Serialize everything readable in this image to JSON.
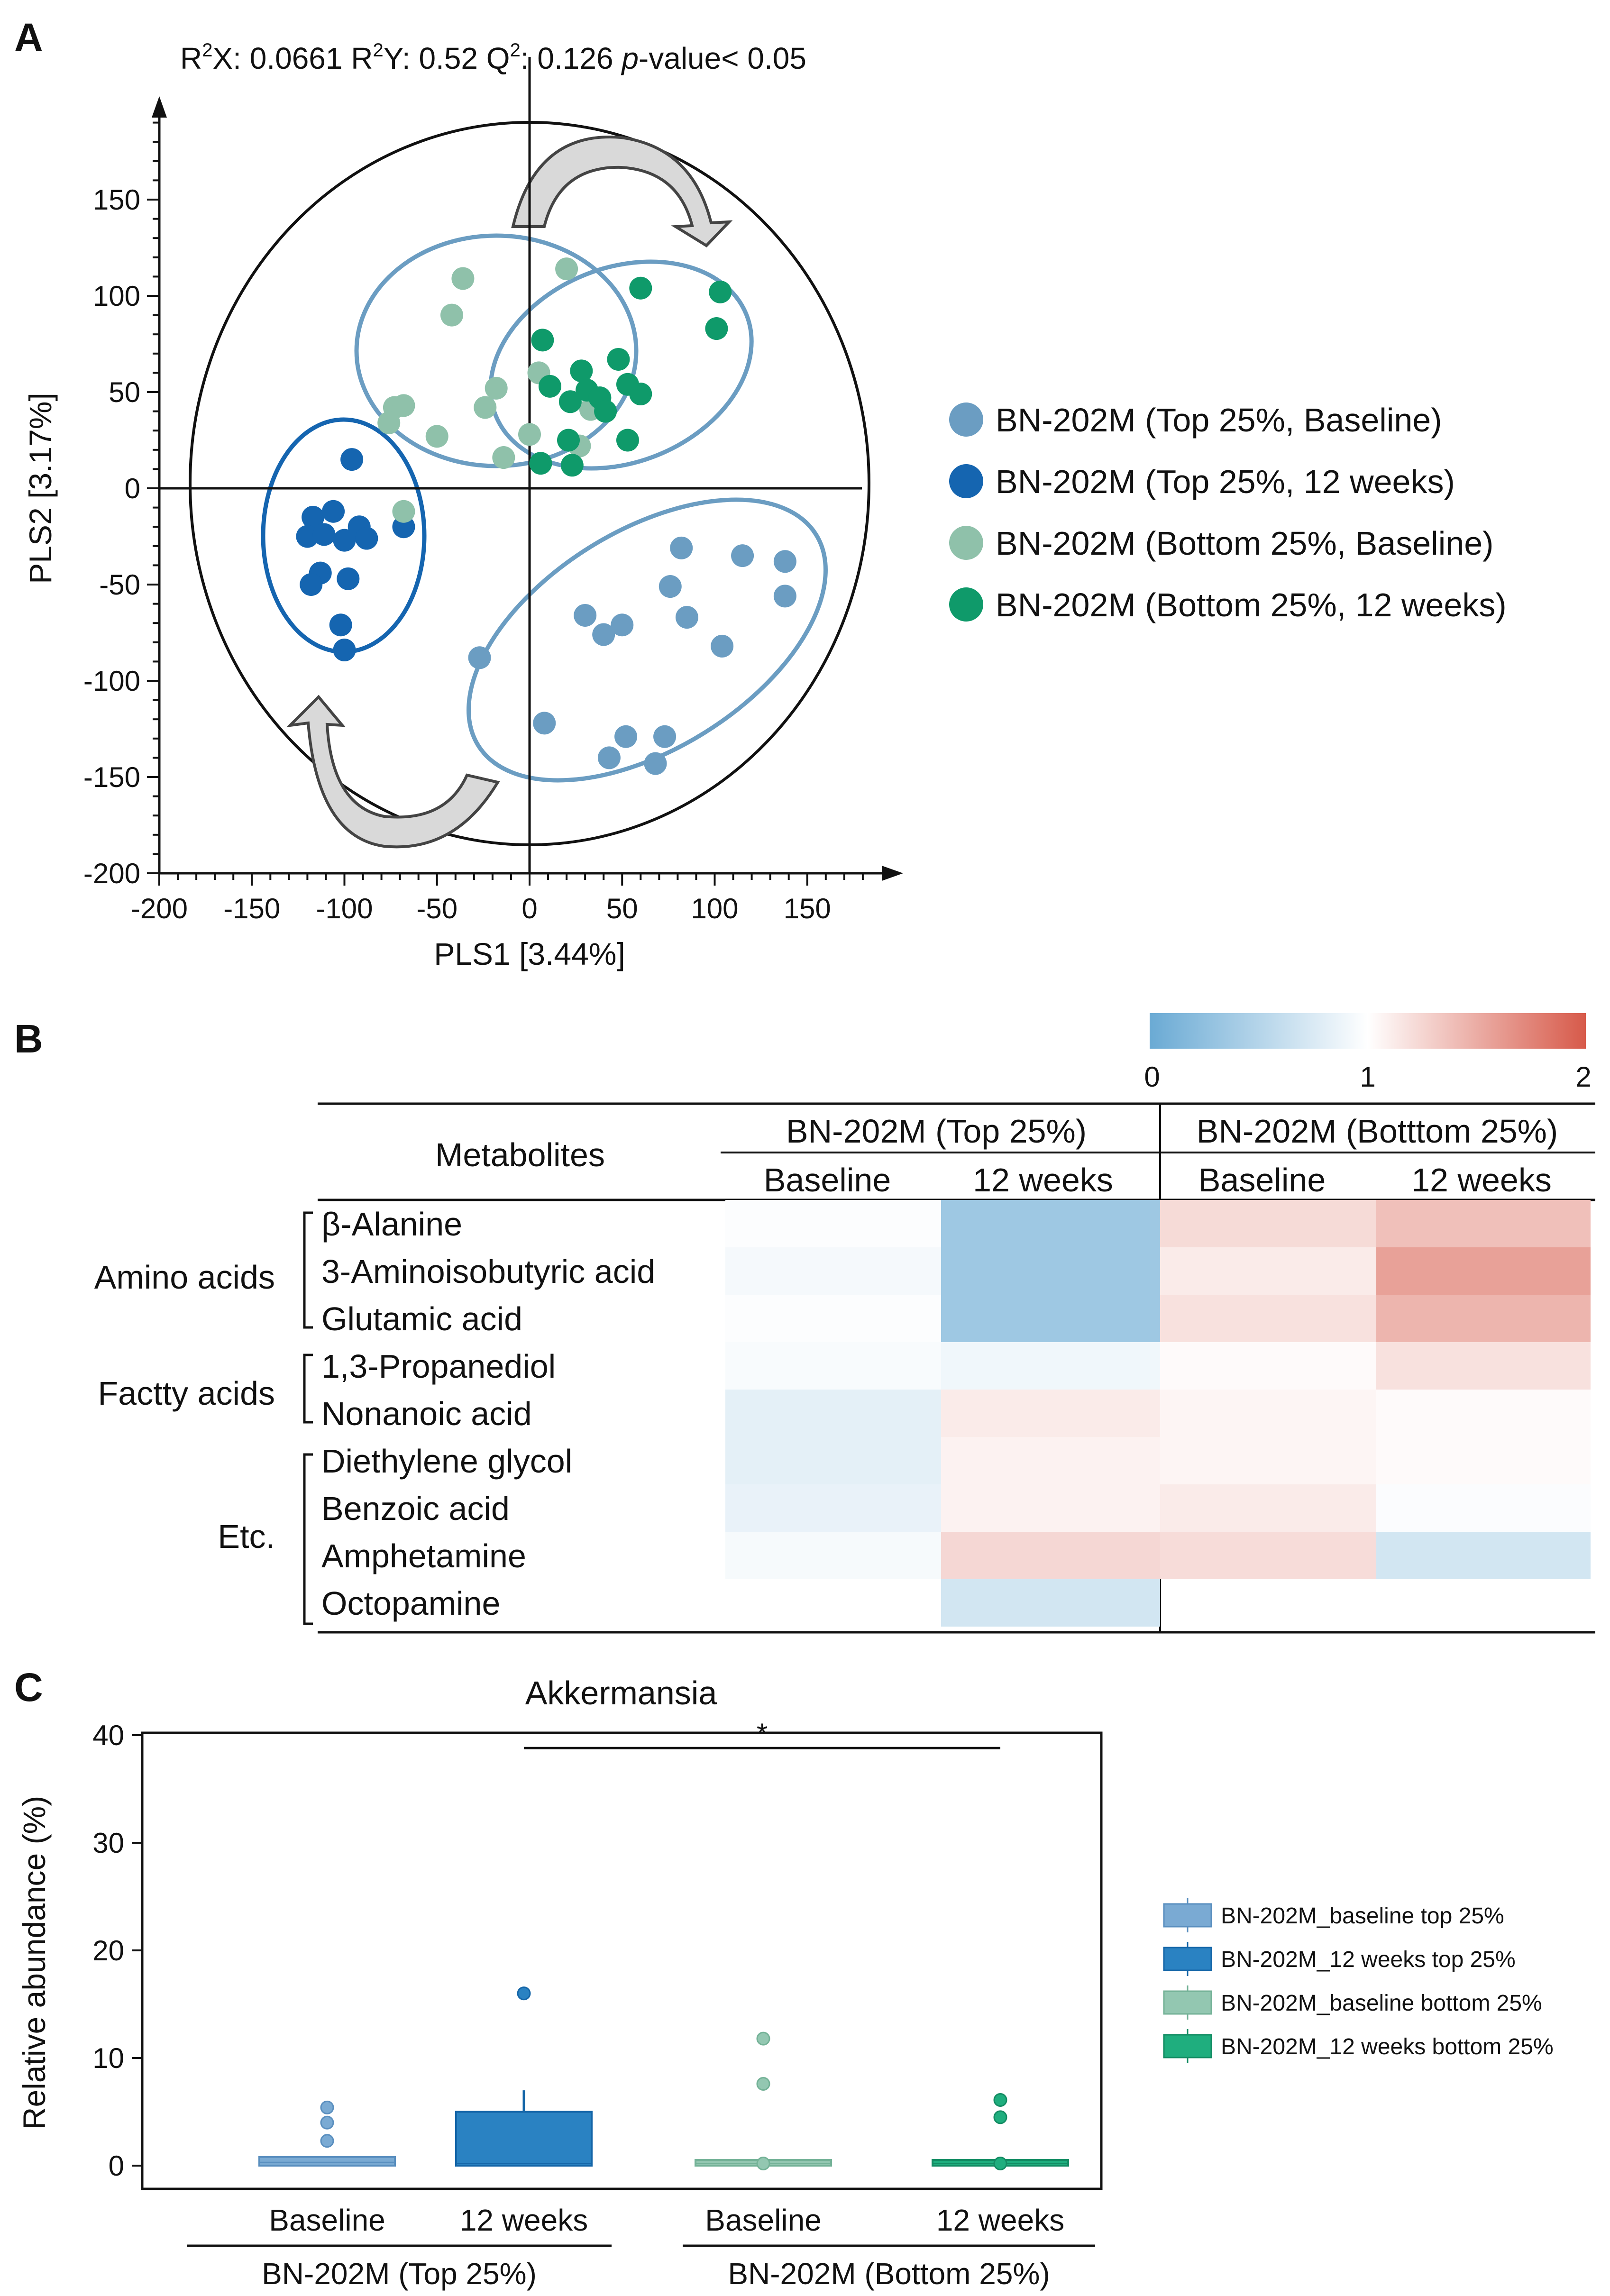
{
  "panel_labels": {
    "a": "A",
    "b": "B",
    "c": "C"
  },
  "chart_data": [
    {
      "panel": "A",
      "type": "scatter",
      "stats": {
        "r2x_label": "R",
        "r2x_sup": "2",
        "r2x_rest": "X: 0.0661 ",
        "r2y_label": "R",
        "r2y_sup": "2",
        "r2y_rest": "Y: 0.52 ",
        "q2_label": "Q",
        "q2_sup": "2",
        "q2_rest": ": 0.126 ",
        "p_label": "p",
        "p_rest": "-value< 0.05"
      },
      "xlabel": "PLS1 [3.44%]",
      "ylabel": "PLS2 [3.17%]",
      "xlim": [
        -200,
        190
      ],
      "ylim": [
        -200,
        195
      ],
      "xticks": [
        -200,
        -150,
        -100,
        -50,
        0,
        50,
        100,
        150
      ],
      "yticks": [
        150,
        100,
        50,
        0,
        -50,
        -100,
        -150,
        -200
      ],
      "series": [
        {
          "name": "BN-202M (Top 25%, Baseline)",
          "color": "#6b9dc2",
          "points": [
            [
              -27,
              -88
            ],
            [
              8,
              -122
            ],
            [
              30,
              -66
            ],
            [
              40,
              -76
            ],
            [
              50,
              -71
            ],
            [
              76,
              -51
            ],
            [
              82,
              -31
            ],
            [
              85,
              -67
            ],
            [
              104,
              -82
            ],
            [
              115,
              -35
            ],
            [
              138,
              -38
            ],
            [
              138,
              -56
            ],
            [
              43,
              -140
            ],
            [
              52,
              -129
            ],
            [
              73,
              -129
            ],
            [
              68,
              -143
            ]
          ]
        },
        {
          "name": "BN-202M (Top 25%, 12 weeks)",
          "color": "#1565b0",
          "points": [
            [
              -117,
              -15
            ],
            [
              -106,
              -12
            ],
            [
              -92,
              -20
            ],
            [
              -68,
              -20
            ],
            [
              -120,
              -25
            ],
            [
              -111,
              -24
            ],
            [
              -100,
              -27
            ],
            [
              -88,
              -26
            ],
            [
              -113,
              -44
            ],
            [
              -98,
              -47
            ],
            [
              -118,
              -50
            ],
            [
              -102,
              -71
            ],
            [
              -100,
              -84
            ],
            [
              -96,
              15
            ]
          ]
        },
        {
          "name": "BN-202M (Bottom 25%, Baseline)",
          "color": "#8fc1aa",
          "points": [
            [
              -36,
              109
            ],
            [
              -42,
              90
            ],
            [
              20,
              114
            ],
            [
              -73,
              42
            ],
            [
              -68,
              43
            ],
            [
              -76,
              34
            ],
            [
              -18,
              52
            ],
            [
              -24,
              42
            ],
            [
              -50,
              27
            ],
            [
              0,
              28
            ],
            [
              -14,
              16
            ],
            [
              5,
              60
            ],
            [
              27,
              22
            ],
            [
              33,
              41
            ],
            [
              -68,
              -12
            ]
          ]
        },
        {
          "name": "BN-202M (Bottom 25%, 12 weeks)",
          "color": "#0f9a6a",
          "points": [
            [
              60,
              104
            ],
            [
              103,
              102
            ],
            [
              101,
              83
            ],
            [
              7,
              77
            ],
            [
              48,
              67
            ],
            [
              28,
              61
            ],
            [
              11,
              53
            ],
            [
              31,
              51
            ],
            [
              38,
              47
            ],
            [
              53,
              54
            ],
            [
              60,
              49
            ],
            [
              41,
              40
            ],
            [
              22,
              45
            ],
            [
              21,
              25
            ],
            [
              53,
              25
            ],
            [
              6,
              13
            ],
            [
              23,
              12
            ]
          ]
        }
      ]
    },
    {
      "panel": "B",
      "type": "heatmap",
      "colorbar": {
        "min": 0,
        "mid": 1,
        "max": 2,
        "tick_labels": [
          "0",
          "1",
          "2"
        ],
        "color_low": "#6aaad4",
        "color_mid": "#ffffff",
        "color_high": "#d75a4a"
      },
      "header": {
        "metabolites": "Metabolites",
        "group_top": "BN-202M   (Top 25%)",
        "group_bottom": "BN-202M  (Botttom 25%)",
        "columns": [
          "Baseline",
          "12 weeks",
          "Baseline",
          "12 weeks"
        ]
      },
      "categories": [
        {
          "name": "Amino acids",
          "rows": [
            0,
            2
          ]
        },
        {
          "name": "Factty acids",
          "rows": [
            3,
            4
          ]
        },
        {
          "name": "Etc.",
          "rows": [
            5,
            8
          ]
        }
      ],
      "rows": [
        "β-Alanine",
        "3-Aminoisobutyric acid",
        "Glutamic acid",
        "1,3-Propanediol",
        "Nonanoic acid",
        "Diethylene glycol",
        "Benzoic acid",
        "Amphetamine",
        "Octopamine"
      ],
      "values": [
        [
          0.98,
          0.35,
          1.22,
          1.38
        ],
        [
          0.93,
          0.35,
          1.12,
          1.57
        ],
        [
          0.98,
          0.35,
          1.18,
          1.45
        ],
        [
          0.95,
          0.9,
          1.03,
          1.18
        ],
        [
          0.82,
          1.12,
          1.06,
          1.03
        ],
        [
          0.82,
          1.08,
          1.06,
          1.03
        ],
        [
          0.85,
          1.08,
          1.12,
          0.97
        ],
        [
          0.94,
          1.24,
          1.21,
          0.7
        ],
        [
          null,
          0.7,
          null,
          null
        ]
      ]
    },
    {
      "panel": "C",
      "type": "box",
      "title": "Akkermansia",
      "ylabel": "Relative abundance (%)",
      "ylim": [
        -1.5,
        40
      ],
      "yticks": [
        0,
        10,
        20,
        30,
        40
      ],
      "categories": [
        "Baseline",
        "12 weeks",
        "Baseline",
        "12 weeks"
      ],
      "group_labels": [
        "BN-202M (Top 25%)",
        "BN-202M (Bottom 25%)"
      ],
      "significance": "*",
      "significance_between": [
        1,
        3
      ],
      "series": [
        {
          "name": "BN-202M_baseline top 25%",
          "fill": "#7aaad3",
          "stroke": "#5a8fbf",
          "q1": 0,
          "median": 0.3,
          "q3": 0.8,
          "whisker_low": 0,
          "whisker_high": 0.8,
          "outliers": [
            2.3,
            4.0,
            5.4
          ]
        },
        {
          "name": "BN-202M_12 weeks top 25%",
          "fill": "#2a82c2",
          "stroke": "#1566a8",
          "q1": 0,
          "median": 0.2,
          "q3": 5.0,
          "whisker_low": 0,
          "whisker_high": 7.0,
          "outliers": [
            16.0
          ]
        },
        {
          "name": "BN-202M_baseline bottom 25%",
          "fill": "#93c7b1",
          "stroke": "#74b297",
          "q1": 0,
          "median": 0.2,
          "q3": 0.5,
          "whisker_low": 0,
          "whisker_high": 0.5,
          "outliers": [
            0.2,
            7.6,
            11.8
          ]
        },
        {
          "name": "BN-202M_12 weeks bottom 25%",
          "fill": "#1fae7e",
          "stroke": "#138c63",
          "q1": 0,
          "median": 0.2,
          "q3": 0.5,
          "whisker_low": 0,
          "whisker_high": 0.5,
          "outliers": [
            0.2,
            4.5,
            6.1
          ]
        }
      ]
    }
  ]
}
